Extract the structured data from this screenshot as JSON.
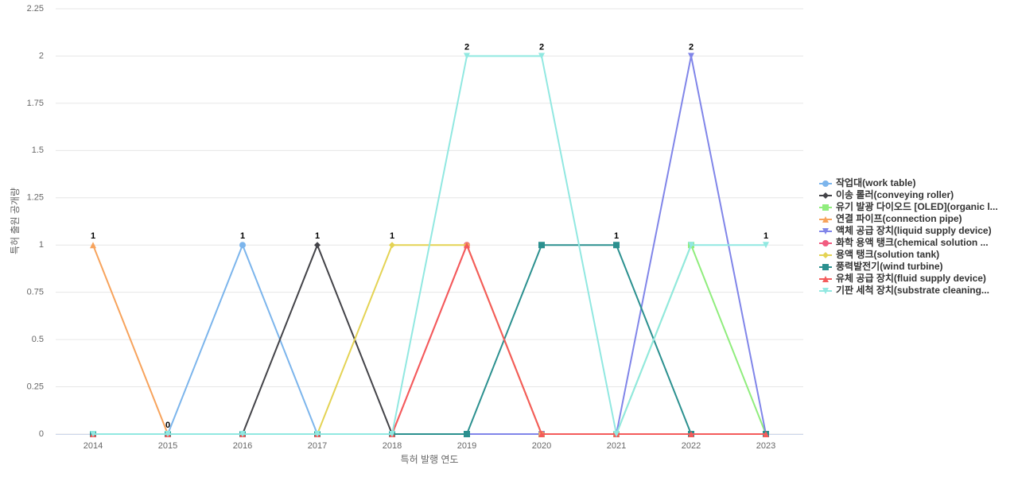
{
  "chart_data": {
    "type": "line",
    "x_label": "특허 발행 연도",
    "y_label": "특허 출원 공개량",
    "categories": [
      "2014",
      "2015",
      "2016",
      "2017",
      "2018",
      "2019",
      "2020",
      "2021",
      "2022",
      "2023"
    ],
    "ylim": [
      0,
      2.25
    ],
    "yticks": [
      0,
      0.25,
      0.5,
      0.75,
      1,
      1.25,
      1.5,
      1.75,
      2,
      2.25
    ],
    "grid": true,
    "legend": "right",
    "series": [
      {
        "name": "작업대(work table)",
        "color": "#7cb5ec",
        "marker": "circle",
        "values": [
          0,
          0,
          1,
          0,
          0,
          0,
          0,
          0,
          0,
          0
        ]
      },
      {
        "name": "이송 롤러(conveying roller)",
        "color": "#434348",
        "marker": "diamond",
        "values": [
          0,
          0,
          0,
          1,
          0,
          0,
          0,
          0,
          0,
          0
        ]
      },
      {
        "name": "유기 발광 다이오드 [OLED](organic l...",
        "color": "#90ed7d",
        "marker": "square",
        "values": [
          0,
          0,
          0,
          0,
          0,
          0,
          0,
          0,
          1,
          0
        ]
      },
      {
        "name": "연결 파이프(connection pipe)",
        "color": "#f7a35c",
        "marker": "triangle",
        "values": [
          1,
          0,
          0,
          0,
          0,
          0,
          0,
          0,
          0,
          0
        ]
      },
      {
        "name": "액체 공급 장치(liquid supply device)",
        "color": "#8085e9",
        "marker": "triangle-down",
        "values": [
          0,
          0,
          0,
          0,
          0,
          0,
          0,
          0,
          2,
          0
        ]
      },
      {
        "name": "화학 용액 탱크(chemical solution ...",
        "color": "#f15c80",
        "marker": "circle",
        "values": [
          0,
          0,
          0,
          0,
          0,
          1,
          0,
          0,
          0,
          0
        ]
      },
      {
        "name": "용액 탱크(solution tank)",
        "color": "#e4d354",
        "marker": "diamond",
        "values": [
          0,
          0,
          0,
          0,
          1,
          1,
          0,
          0,
          0,
          0
        ]
      },
      {
        "name": "풍력발전기(wind turbine)",
        "color": "#2b908f",
        "marker": "square",
        "values": [
          0,
          0,
          0,
          0,
          0,
          0,
          1,
          1,
          0,
          0
        ]
      },
      {
        "name": "유체 공급 장치(fluid supply device)",
        "color": "#f45b5b",
        "marker": "triangle",
        "values": [
          0,
          0,
          0,
          0,
          0,
          1,
          0,
          0,
          0,
          0
        ]
      },
      {
        "name": "기판 세척 장치(substrate cleaning...",
        "color": "#91e8e1",
        "marker": "triangle-down",
        "values": [
          0,
          0,
          0,
          0,
          0,
          2,
          2,
          0,
          1,
          1
        ]
      }
    ]
  }
}
